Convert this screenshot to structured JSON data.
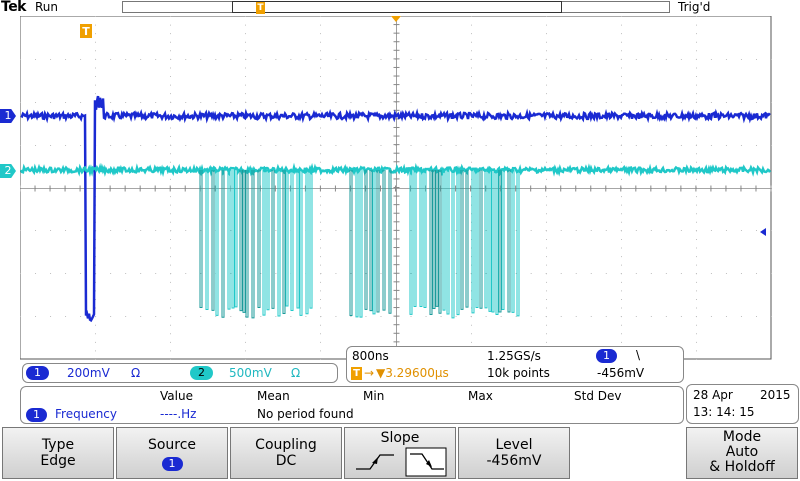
{
  "brand": "Tek",
  "acq_status": "Run",
  "trigger_status": "Trig'd",
  "markers": {
    "trigger_pos": "T",
    "ch1": "1",
    "ch2": "2"
  },
  "channels": [
    {
      "number": "1",
      "scale": "200mV",
      "coupling_symbol": "Ω",
      "color": "#1a2ad2"
    },
    {
      "number": "2",
      "scale": "500mV",
      "coupling_symbol": "Ω",
      "color": "#20c8c8"
    }
  ],
  "timebase": {
    "scale": "800ns",
    "sample_rate": "1.25GS/s",
    "trigger_source": "1",
    "slope_symbol": "\\",
    "position_icon": "T",
    "position": "▼3.29600µs",
    "record_length": "10k points",
    "trigger_level": "-456mV"
  },
  "measurements": {
    "headers": [
      "Value",
      "Mean",
      "Min",
      "Max",
      "Std Dev"
    ],
    "source": "1",
    "name": "Frequency",
    "value": "----.Hz",
    "note": "No period found"
  },
  "datetime": {
    "date": "28 Apr",
    "year": "2015",
    "time": "13: 14: 15"
  },
  "menu": {
    "type": {
      "title": "Type",
      "value": "Edge"
    },
    "source": {
      "title": "Source",
      "value": "1"
    },
    "coupling": {
      "title": "Coupling",
      "value": "DC"
    },
    "slope": {
      "title": "Slope",
      "options": [
        "rising",
        "falling"
      ],
      "selected": "falling"
    },
    "level": {
      "title": "Level",
      "value": "-456mV"
    },
    "mode": {
      "title": "Mode",
      "value1": "Auto",
      "value2": "& Holdoff"
    }
  },
  "colors": {
    "ch1": "#1a2ad2",
    "ch2": "#20c8c8",
    "trigger": "#f0a000",
    "grid": "#bfbfbf"
  }
}
